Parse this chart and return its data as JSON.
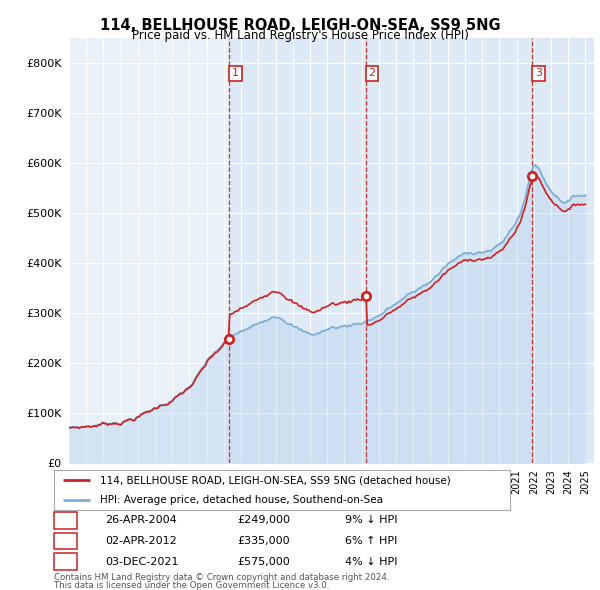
{
  "title": "114, BELLHOUSE ROAD, LEIGH-ON-SEA, SS9 5NG",
  "subtitle": "Price paid vs. HM Land Registry's House Price Index (HPI)",
  "ylim": [
    0,
    850000
  ],
  "yticks": [
    0,
    100000,
    200000,
    300000,
    400000,
    500000,
    600000,
    700000,
    800000
  ],
  "ytick_labels": [
    "£0",
    "£100K",
    "£200K",
    "£300K",
    "£400K",
    "£500K",
    "£600K",
    "£700K",
    "£800K"
  ],
  "hpi_color": "#7aadd4",
  "hpi_fill": "#d0e4f0",
  "price_color": "#cc2222",
  "vline_color": "#cc2222",
  "grid_color": "#c8d8e8",
  "sales": [
    {
      "date": 2004.32,
      "price": 249000,
      "label": "1"
    },
    {
      "date": 2012.25,
      "price": 335000,
      "label": "2"
    },
    {
      "date": 2021.92,
      "price": 575000,
      "label": "3"
    }
  ],
  "legend_line1": "114, BELLHOUSE ROAD, LEIGH-ON-SEA, SS9 5NG (detached house)",
  "legend_line2": "HPI: Average price, detached house, Southend-on-Sea",
  "table": [
    {
      "num": "1",
      "date": "26-APR-2004",
      "price": "£249,000",
      "hpi": "9% ↓ HPI"
    },
    {
      "num": "2",
      "date": "02-APR-2012",
      "price": "£335,000",
      "hpi": "6% ↑ HPI"
    },
    {
      "num": "3",
      "date": "03-DEC-2021",
      "price": "£575,000",
      "hpi": "4% ↓ HPI"
    }
  ],
  "footnote1": "Contains HM Land Registry data © Crown copyright and database right 2024.",
  "footnote2": "This data is licensed under the Open Government Licence v3.0."
}
